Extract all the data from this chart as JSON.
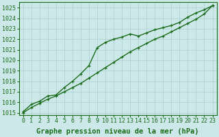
{
  "xlabel": "Graphe pression niveau de la mer (hPa)",
  "ylabel": "",
  "background_color": "#cce8e8",
  "grid_color": "#aacfcf",
  "line_color": "#1a6b1a",
  "xlim": [
    -0.5,
    23.5
  ],
  "ylim": [
    1014.8,
    1025.5
  ],
  "yticks": [
    1015,
    1016,
    1017,
    1018,
    1019,
    1020,
    1021,
    1022,
    1023,
    1024,
    1025
  ],
  "xticks": [
    0,
    1,
    2,
    3,
    4,
    5,
    6,
    7,
    8,
    9,
    10,
    11,
    12,
    13,
    14,
    15,
    16,
    17,
    18,
    19,
    20,
    21,
    22,
    23
  ],
  "series1_x": [
    0,
    1,
    2,
    3,
    4,
    5,
    6,
    7,
    8,
    9,
    10,
    11,
    12,
    13,
    14,
    15,
    16,
    17,
    18,
    19,
    20,
    21,
    22,
    23
  ],
  "series1_y": [
    1015.1,
    1015.8,
    1016.1,
    1016.6,
    1016.7,
    1017.4,
    1018.0,
    1018.7,
    1019.5,
    1021.2,
    1021.7,
    1022.0,
    1022.2,
    1022.5,
    1022.3,
    1022.6,
    1022.9,
    1023.1,
    1023.3,
    1023.6,
    1024.1,
    1024.5,
    1024.8,
    1025.2
  ],
  "series2_x": [
    0,
    1,
    2,
    3,
    4,
    5,
    6,
    7,
    8,
    9,
    10,
    11,
    12,
    13,
    14,
    15,
    16,
    17,
    18,
    19,
    20,
    21,
    22,
    23
  ],
  "series2_y": [
    1015.0,
    1015.5,
    1015.9,
    1016.3,
    1016.6,
    1017.0,
    1017.4,
    1017.8,
    1018.3,
    1018.8,
    1019.3,
    1019.8,
    1020.3,
    1020.8,
    1021.2,
    1021.6,
    1022.0,
    1022.3,
    1022.7,
    1023.1,
    1023.5,
    1023.9,
    1024.4,
    1025.2
  ],
  "xlabel_fontsize": 7.5,
  "tick_fontsize": 6,
  "marker": "+",
  "markersize": 3.5,
  "linewidth": 1.0
}
